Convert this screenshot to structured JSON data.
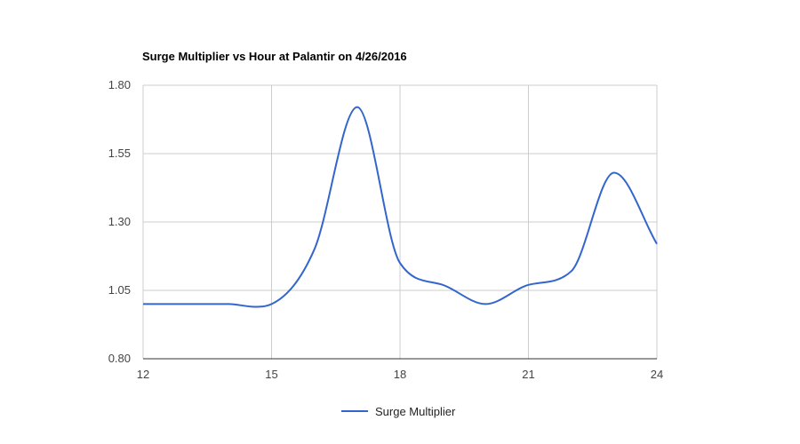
{
  "chart_data": {
    "type": "line",
    "title": "Surge Multiplier vs Hour at Palantir on 4/26/2016",
    "xlabel": "",
    "ylabel": "",
    "xlim": [
      12,
      24
    ],
    "ylim": [
      0.8,
      1.8
    ],
    "x_ticks": [
      12,
      15,
      18,
      21,
      24
    ],
    "x_tick_labels": [
      "12",
      "15",
      "18",
      "21",
      "24"
    ],
    "y_ticks": [
      0.8,
      1.05,
      1.3,
      1.55,
      1.8
    ],
    "y_tick_labels": [
      "0.80",
      "1.05",
      "1.30",
      "1.55",
      "1.80"
    ],
    "grid": true,
    "smooth": true,
    "legend_position": "bottom",
    "series": [
      {
        "name": "Surge Multiplier",
        "color": "#3366cc",
        "x": [
          12,
          13,
          14,
          14.6,
          15,
          16,
          17,
          18,
          19,
          20,
          21,
          22,
          23,
          24
        ],
        "y": [
          1.0,
          1.0,
          1.0,
          0.99,
          1.0,
          1.2,
          1.72,
          1.15,
          1.07,
          1.0,
          1.07,
          1.12,
          1.48,
          1.22
        ]
      }
    ]
  }
}
